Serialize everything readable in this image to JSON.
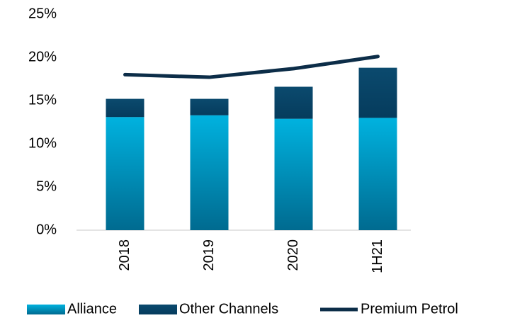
{
  "chart_data": {
    "type": "bar",
    "stacked": true,
    "categories": [
      "2018",
      "2019",
      "2020",
      "1H21"
    ],
    "series": [
      {
        "name": "Alliance",
        "type": "bar",
        "color": "#00b2df",
        "values": [
          13.1,
          13.3,
          12.9,
          13.0
        ]
      },
      {
        "name": "Other Channels",
        "type": "bar",
        "color": "#0b4a6e",
        "values": [
          2.1,
          1.9,
          3.7,
          5.8
        ]
      },
      {
        "name": "Premium Petrol",
        "type": "line",
        "color": "#0c2d48",
        "values": [
          18.0,
          17.7,
          18.7,
          20.1
        ]
      }
    ],
    "ylim": [
      0,
      25
    ],
    "yticks": [
      {
        "value": 0,
        "label": "0%"
      },
      {
        "value": 5,
        "label": "5%"
      },
      {
        "value": 10,
        "label": "10%"
      },
      {
        "value": 15,
        "label": "15%"
      },
      {
        "value": 20,
        "label": "20%"
      },
      {
        "value": 25,
        "label": "25%"
      }
    ],
    "grid": false,
    "legend": "bottom"
  }
}
